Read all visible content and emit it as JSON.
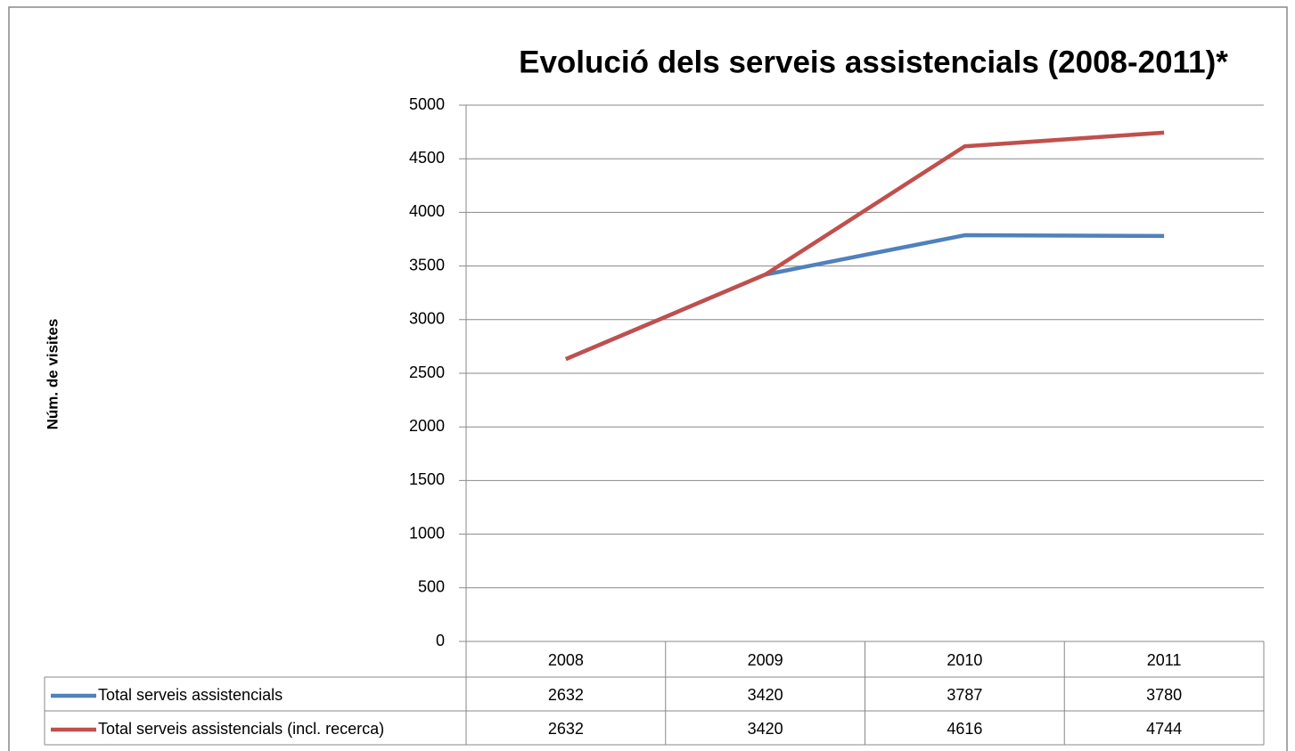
{
  "chart_data": {
    "type": "line",
    "title": "Evolució dels serveis assistencials (2008-2011)*",
    "ylabel": "Núm. de visites",
    "categories": [
      "2008",
      "2009",
      "2010",
      "2011"
    ],
    "series": [
      {
        "name": "Total serveis assistencials",
        "color": "#4f81bd",
        "values": [
          2632,
          3420,
          3787,
          3780
        ]
      },
      {
        "name": "Total serveis assistencials (incl. recerca)",
        "color": "#c0504d",
        "values": [
          2632,
          3420,
          4616,
          4744
        ]
      }
    ],
    "ylim": [
      0,
      5000
    ],
    "yticks": [
      0,
      500,
      1000,
      1500,
      2000,
      2500,
      3000,
      3500,
      4000,
      4500,
      5000
    ],
    "grid": true
  }
}
